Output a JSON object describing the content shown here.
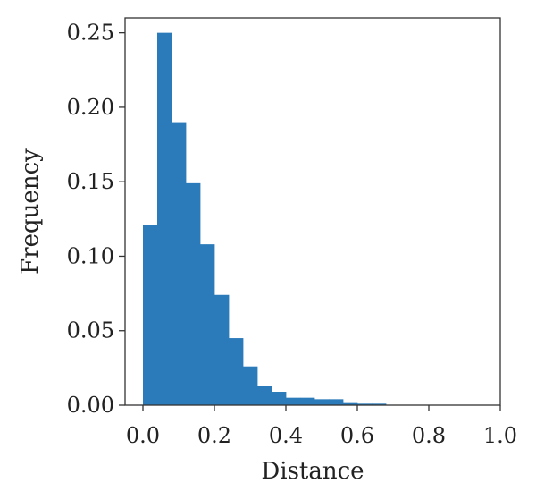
{
  "chart_data": {
    "type": "bar",
    "subtype": "histogram",
    "xlabel": "Distance",
    "ylabel": "Frequency",
    "xlim": [
      0.0,
      1.0
    ],
    "ylim": [
      0.0,
      0.26
    ],
    "grid": false,
    "bar_color": "#2b7bba",
    "bin_edges": [
      0.0,
      0.04,
      0.08,
      0.12,
      0.16,
      0.2,
      0.24,
      0.28,
      0.32,
      0.36,
      0.4,
      0.44,
      0.48,
      0.52,
      0.56,
      0.6,
      0.64,
      0.68,
      0.72
    ],
    "values": [
      0.121,
      0.25,
      0.19,
      0.149,
      0.108,
      0.074,
      0.045,
      0.026,
      0.013,
      0.009,
      0.005,
      0.005,
      0.004,
      0.004,
      0.002,
      0.001,
      0.001,
      0.0
    ],
    "xticks": [
      0.0,
      0.2,
      0.4,
      0.6,
      0.8,
      1.0
    ],
    "xtick_labels": [
      "0.0",
      "0.2",
      "0.4",
      "0.6",
      "0.8",
      "1.0"
    ],
    "yticks": [
      0.0,
      0.05,
      0.1,
      0.15,
      0.2,
      0.25
    ],
    "ytick_labels": [
      "0.00",
      "0.05",
      "0.10",
      "0.15",
      "0.20",
      "0.25"
    ]
  }
}
